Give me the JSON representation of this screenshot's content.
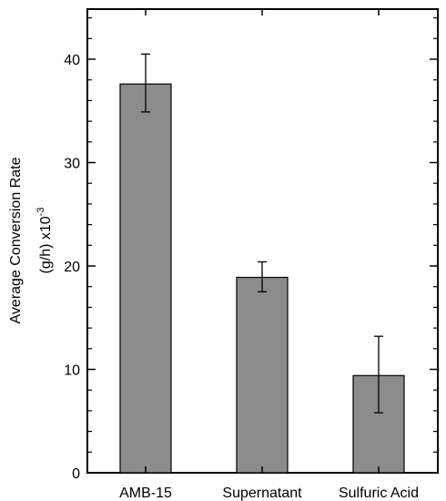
{
  "chart_data": {
    "type": "bar",
    "title": "",
    "xlabel": "",
    "ylabel_line1": "Average Conversion Rate",
    "ylabel_line2_prefix": "(g/h) x10",
    "ylabel_line2_exponent": "-3",
    "categories": [
      "AMB-15",
      "Supernatant",
      "Sulfuric Acid"
    ],
    "values": [
      37.6,
      18.9,
      9.4
    ],
    "error_low": [
      34.9,
      17.5,
      5.8
    ],
    "error_high": [
      40.5,
      20.4,
      13.2
    ],
    "ylim": [
      0,
      45
    ],
    "yticks": [
      0,
      10,
      20,
      30,
      40
    ],
    "ytick_labels": [
      "0",
      "10",
      "20",
      "30",
      "40"
    ],
    "grid": false,
    "bar_color": "#8c8c8c",
    "edge_color": "#000000"
  }
}
